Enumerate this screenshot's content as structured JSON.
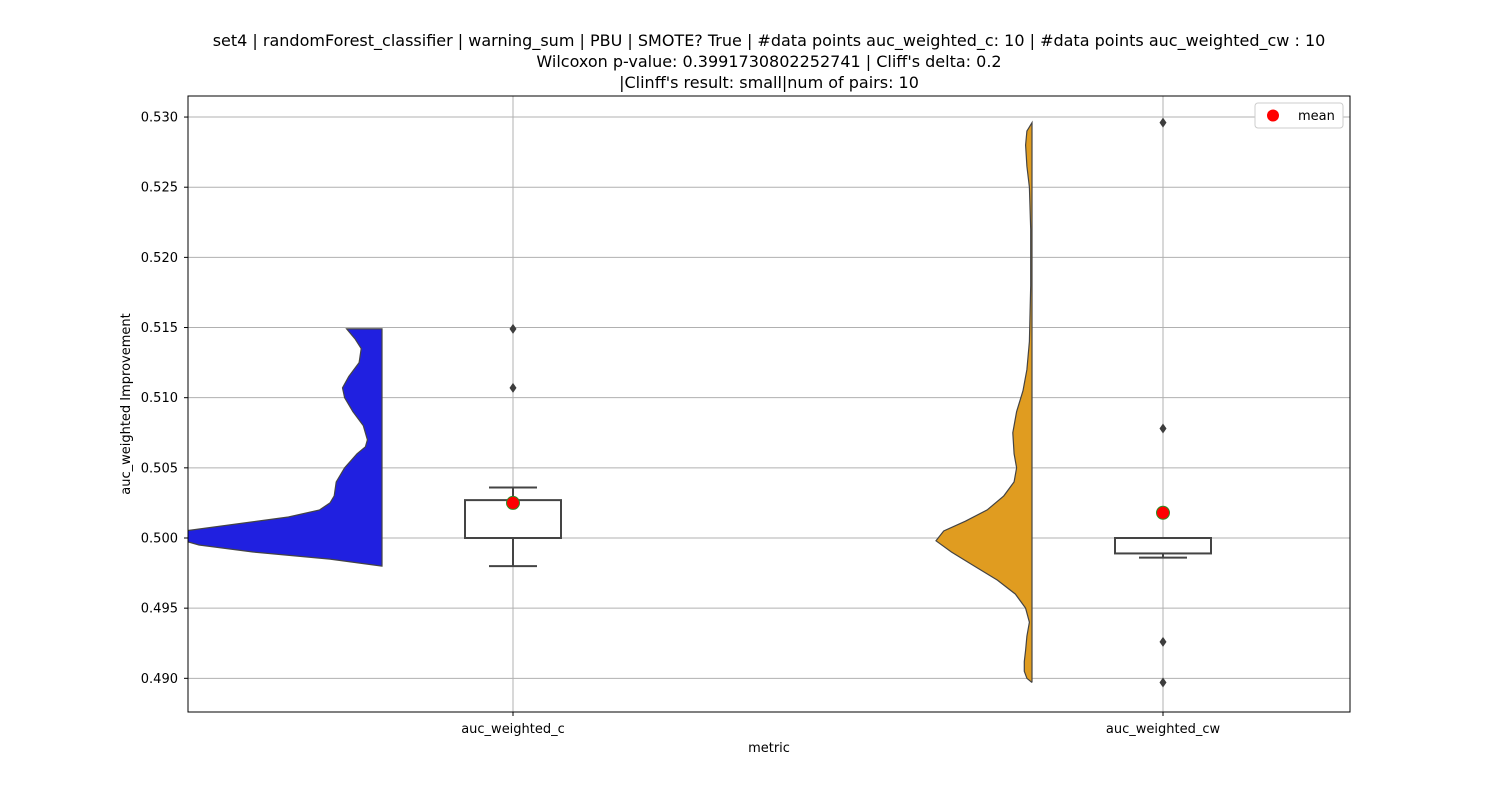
{
  "chart_data": {
    "type": "violin-box",
    "title_lines": [
      "set4 | randomForest_classifier | warning_sum | PBU | SMOTE? True | #data points auc_weighted_c: 10 | #data points auc_weighted_cw : 10",
      "Wilcoxon p-value: 0.3991730802252741 | Cliff's delta: 0.2",
      "|Clinff's result: small|num of pairs: 10"
    ],
    "xlabel": "metric",
    "ylabel": "auc_weighted Improvement",
    "ylim": [
      0.4876,
      0.5315
    ],
    "yticks": [
      "0.490",
      "0.495",
      "0.500",
      "0.505",
      "0.510",
      "0.515",
      "0.520",
      "0.525",
      "0.530"
    ],
    "categories": [
      "auc_weighted_c",
      "auc_weighted_cw"
    ],
    "grid": true,
    "legend": {
      "position": "top-right",
      "entries": [
        {
          "label": "mean",
          "color": "#ff0000"
        }
      ]
    },
    "series": [
      {
        "category": "auc_weighted_c",
        "violin_color": "#2020e0",
        "violin_profile": [
          [
            0.498,
            0.0
          ],
          [
            0.4985,
            0.25
          ],
          [
            0.499,
            0.62
          ],
          [
            0.4995,
            0.88
          ],
          [
            0.5,
            1.0
          ],
          [
            0.5005,
            0.95
          ],
          [
            0.501,
            0.7
          ],
          [
            0.5015,
            0.45
          ],
          [
            0.502,
            0.3
          ],
          [
            0.5025,
            0.25
          ],
          [
            0.503,
            0.23
          ],
          [
            0.504,
            0.22
          ],
          [
            0.505,
            0.18
          ],
          [
            0.506,
            0.12
          ],
          [
            0.5065,
            0.08
          ],
          [
            0.507,
            0.07
          ],
          [
            0.508,
            0.09
          ],
          [
            0.509,
            0.14
          ],
          [
            0.51,
            0.18
          ],
          [
            0.5107,
            0.19
          ],
          [
            0.5115,
            0.16
          ],
          [
            0.5125,
            0.11
          ],
          [
            0.5135,
            0.1
          ],
          [
            0.5142,
            0.13
          ],
          [
            0.5149,
            0.17
          ]
        ],
        "box": {
          "whisker_low": 0.498,
          "q1": 0.5,
          "median": 0.5,
          "q3": 0.5027,
          "whisker_high": 0.5036
        },
        "outliers": [
          0.5107,
          0.5149
        ],
        "mean": 0.5025
      },
      {
        "category": "auc_weighted_cw",
        "violin_color": "#e09c20",
        "violin_profile": [
          [
            0.4897,
            0.0
          ],
          [
            0.49,
            0.04
          ],
          [
            0.4905,
            0.06
          ],
          [
            0.4912,
            0.06
          ],
          [
            0.492,
            0.05
          ],
          [
            0.493,
            0.04
          ],
          [
            0.494,
            0.02
          ],
          [
            0.495,
            0.05
          ],
          [
            0.496,
            0.13
          ],
          [
            0.497,
            0.27
          ],
          [
            0.498,
            0.45
          ],
          [
            0.499,
            0.63
          ],
          [
            0.4998,
            0.75
          ],
          [
            0.5005,
            0.69
          ],
          [
            0.5012,
            0.52
          ],
          [
            0.502,
            0.35
          ],
          [
            0.503,
            0.22
          ],
          [
            0.504,
            0.14
          ],
          [
            0.505,
            0.12
          ],
          [
            0.506,
            0.14
          ],
          [
            0.5075,
            0.15
          ],
          [
            0.509,
            0.12
          ],
          [
            0.5105,
            0.07
          ],
          [
            0.512,
            0.04
          ],
          [
            0.514,
            0.02
          ],
          [
            0.518,
            0.01
          ],
          [
            0.522,
            0.01
          ],
          [
            0.525,
            0.02
          ],
          [
            0.5265,
            0.04
          ],
          [
            0.528,
            0.05
          ],
          [
            0.529,
            0.04
          ],
          [
            0.5296,
            0.0
          ]
        ],
        "box": {
          "whisker_low": 0.4986,
          "q1": 0.4989,
          "median": 0.5,
          "q3": 0.5,
          "whisker_high": 0.5
        },
        "outliers": [
          0.4897,
          0.4926,
          0.5078,
          0.5296
        ],
        "mean": 0.5018
      }
    ]
  }
}
